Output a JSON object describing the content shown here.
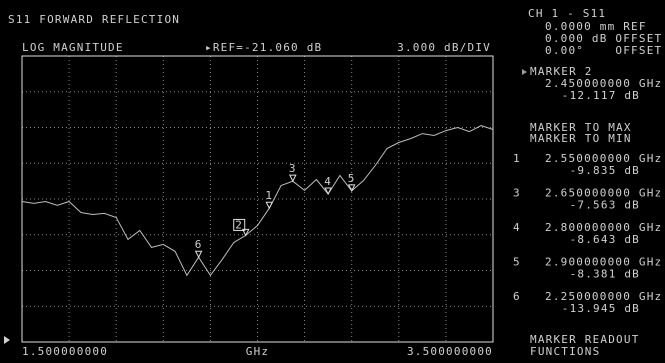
{
  "header": {
    "title": "S11 FORWARD REFLECTION",
    "format": "LOG MAGNITUDE",
    "reference": "▸REF=-21.060 dB",
    "scale": "3.000 dB/DIV"
  },
  "chart_data": {
    "type": "line",
    "color": "#bdbdbd",
    "grid": true,
    "x": [
      1.5,
      1.55,
      1.6,
      1.65,
      1.7,
      1.75,
      1.8,
      1.85,
      1.9,
      1.95,
      2.0,
      2.05,
      2.1,
      2.15,
      2.2,
      2.25,
      2.3,
      2.35,
      2.4,
      2.45,
      2.5,
      2.55,
      2.6,
      2.65,
      2.7,
      2.75,
      2.8,
      2.85,
      2.9,
      2.95,
      3.0,
      3.05,
      3.1,
      3.15,
      3.2,
      3.25,
      3.3,
      3.35,
      3.4,
      3.45,
      3.5
    ],
    "values": [
      -9.27,
      -9.43,
      -9.27,
      -9.6,
      -9.27,
      -10.19,
      -10.36,
      -10.27,
      -10.61,
      -12.45,
      -11.7,
      -13.12,
      -12.87,
      -13.46,
      -15.47,
      -13.945,
      -15.47,
      -14.13,
      -12.7,
      -12.117,
      -11.28,
      -9.835,
      -7.93,
      -7.563,
      -8.34,
      -7.42,
      -8.643,
      -7.09,
      -8.381,
      -7.51,
      -6.25,
      -4.82,
      -4.32,
      -3.99,
      -3.57,
      -3.73,
      -3.32,
      -3.06,
      -3.4,
      -2.9,
      -3.23
    ],
    "xlabel": "GHz",
    "xlim": [
      1.5,
      3.5
    ],
    "xticks": [
      {
        "value": 1.5,
        "label": "1.500000000"
      },
      1.7,
      1.9,
      2.1,
      2.3,
      2.5,
      2.7,
      2.9,
      3.1,
      3.3,
      {
        "value": 3.5,
        "label": "3.500000000"
      }
    ],
    "ylim": [
      -21.06,
      2.94
    ],
    "yticks": [
      -21.06,
      -18.06,
      -15.06,
      -12.06,
      -9.06,
      -6.06,
      -3.06,
      -0.06,
      2.94
    ],
    "markers": [
      {
        "label": "1",
        "x": 2.55,
        "y": -9.835
      },
      {
        "label": "2",
        "x": 2.45,
        "y": -12.117,
        "active": true
      },
      {
        "label": "3",
        "x": 2.65,
        "y": -7.563
      },
      {
        "label": "4",
        "x": 2.8,
        "y": -8.643
      },
      {
        "label": "5",
        "x": 2.9,
        "y": -8.381
      },
      {
        "label": "6",
        "x": 2.25,
        "y": -13.945
      }
    ]
  },
  "panel": {
    "channel": "CH 1 - S11",
    "lines": [
      "0.0000 mm REF",
      "0.000 dB OFFSET",
      "0.00°    OFFSET"
    ],
    "active_marker": {
      "title": "MARKER 2",
      "frequency": "2.450000000 GHz",
      "value": "-12.117 dB"
    },
    "menu": [
      "MARKER TO MAX",
      "MARKER TO MIN"
    ],
    "markers": [
      {
        "number": "1",
        "frequency": "2.550000000 GHz",
        "value": "-9.835 dB"
      },
      {
        "number": "3",
        "frequency": "2.650000000 GHz",
        "value": "-7.563 dB"
      },
      {
        "number": "4",
        "frequency": "2.800000000 GHz",
        "value": "-8.643 dB"
      },
      {
        "number": "5",
        "frequency": "2.900000000 GHz",
        "value": "-8.381 dB"
      },
      {
        "number": "6",
        "frequency": "2.250000000 GHz",
        "value": "-13.945 dB"
      }
    ],
    "footer": [
      "MARKER READOUT",
      "FUNCTIONS"
    ]
  }
}
